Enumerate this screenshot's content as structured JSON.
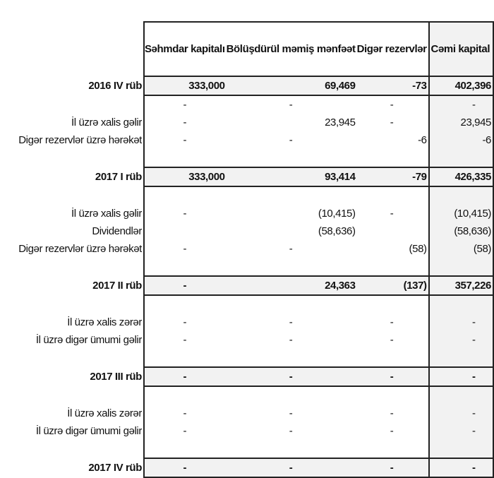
{
  "headers": [
    "Səhmdar kapitalı",
    "Bölüşdürül məmiş mənfəət",
    "Digər rezervlər",
    "Cəmi kapital"
  ],
  "rows": [
    {
      "type": "total",
      "label": "2016 IV rüb",
      "values": [
        "333,000",
        "69,469",
        "-73",
        "402,396"
      ]
    },
    {
      "type": "item",
      "label": "",
      "values": [
        "-",
        "-",
        "-",
        "-"
      ]
    },
    {
      "type": "item",
      "label": "İl üzrə xalis gəlir",
      "values": [
        "-",
        "23,945",
        "-",
        "23,945"
      ]
    },
    {
      "type": "item",
      "label": "Digər rezervlər üzrə hərəkət",
      "values": [
        "-",
        "-",
        "-6",
        "-6"
      ]
    },
    {
      "type": "blank"
    },
    {
      "type": "total",
      "label": "2017 I rüb",
      "values": [
        "333,000",
        "93,414",
        "-79",
        "426,335"
      ]
    },
    {
      "type": "blank"
    },
    {
      "type": "item",
      "label": "İl üzrə xalis gəlir",
      "values": [
        "-",
        "(10,415)",
        "-",
        "(10,415)"
      ]
    },
    {
      "type": "item",
      "label": "Dividendlər",
      "values": [
        "",
        "(58,636)",
        "",
        "(58,636)"
      ]
    },
    {
      "type": "item",
      "label": "Digər rezervlər üzrə hərəkət",
      "values": [
        "-",
        "-",
        "(58)",
        "(58)"
      ]
    },
    {
      "type": "blank"
    },
    {
      "type": "total",
      "label": "2017 II rüb",
      "values": [
        "-",
        "24,363",
        "(137)",
        "357,226"
      ]
    },
    {
      "type": "blank"
    },
    {
      "type": "item",
      "label": "İl üzrə xalis zərər",
      "values": [
        "-",
        "-",
        "-",
        "-"
      ]
    },
    {
      "type": "item",
      "label": "İl üzrə digər ümumi gəlir",
      "values": [
        "-",
        "-",
        "-",
        "-"
      ]
    },
    {
      "type": "blank"
    },
    {
      "type": "total",
      "label": "2017 III rüb",
      "values": [
        "-",
        "-",
        "-",
        "-"
      ]
    },
    {
      "type": "blank"
    },
    {
      "type": "item",
      "label": "İl üzrə xalis zərər",
      "values": [
        "-",
        "-",
        "-",
        "-"
      ]
    },
    {
      "type": "item",
      "label": "İl üzrə digər ümumi gəlir",
      "values": [
        "-",
        "-",
        "-",
        "-"
      ]
    },
    {
      "type": "blank"
    },
    {
      "type": "total",
      "label": "2017 IV rüb",
      "values": [
        "-",
        "-",
        "-",
        "-"
      ]
    }
  ]
}
